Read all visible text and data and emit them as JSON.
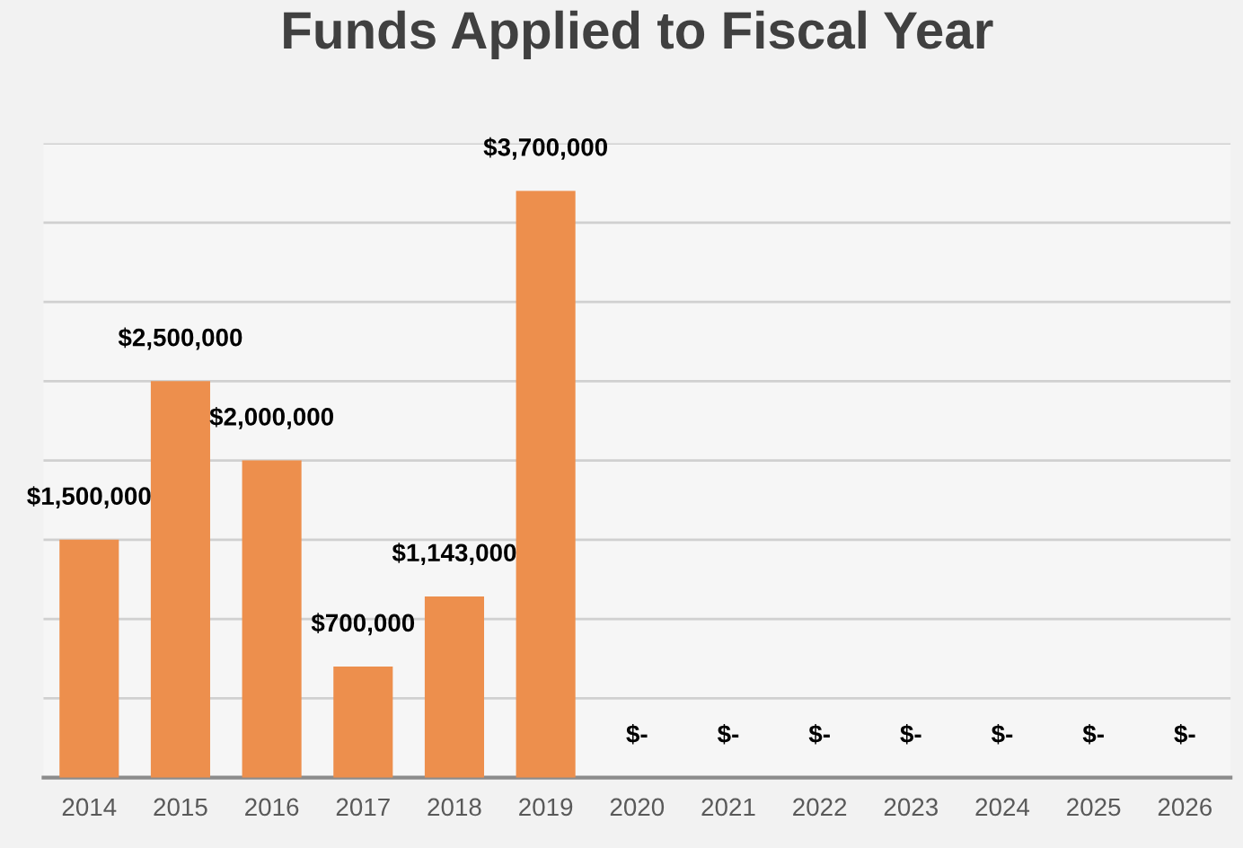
{
  "chart_data": {
    "type": "bar",
    "title": "Funds Applied to Fiscal Year",
    "categories": [
      "2014",
      "2015",
      "2016",
      "2017",
      "2018",
      "2019",
      "2020",
      "2021",
      "2022",
      "2023",
      "2024",
      "2025",
      "2026"
    ],
    "values": [
      1500000,
      2500000,
      2000000,
      700000,
      1143000,
      3700000,
      0,
      0,
      0,
      0,
      0,
      0,
      0
    ],
    "value_labels": [
      "$1,500,000",
      "$2,500,000",
      "$2,000,000",
      "$700,000",
      "$1,143,000",
      "$3,700,000",
      "$-",
      "$-",
      "$-",
      "$-",
      "$-",
      "$-",
      "$-"
    ],
    "color": "#ed8f4d",
    "ylim": [
      0,
      4000000
    ],
    "yticks": [
      {
        "value": 0,
        "label": null
      },
      {
        "value": 500000,
        "label": null
      },
      {
        "value": 1000000,
        "label": null
      },
      {
        "value": 1500000,
        "label": null
      },
      {
        "value": 2000000,
        "label": null
      },
      {
        "value": 2500000,
        "label": null
      },
      {
        "value": 3000000,
        "label": null
      },
      {
        "value": 3500000,
        "label": null
      },
      {
        "value": 4000000,
        "label": null
      }
    ],
    "tick_labels": "x",
    "grid": "y",
    "legend": false
  }
}
